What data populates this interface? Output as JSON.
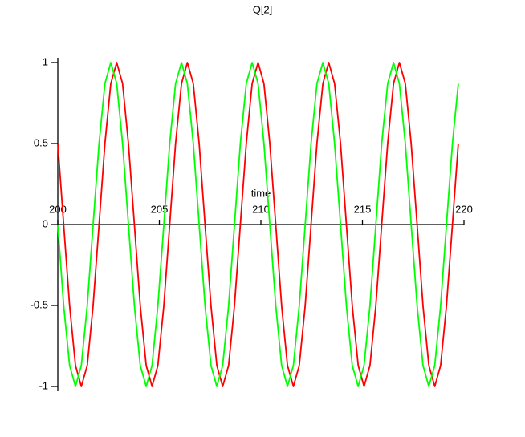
{
  "chart_data": {
    "type": "line",
    "title": "Q[2]",
    "x_label": "time",
    "x": [
      200,
      200.29,
      200.58,
      200.87,
      201.16,
      201.45,
      201.74,
      202.03,
      202.32,
      202.61,
      202.9,
      203.19,
      203.48,
      203.77,
      204.06,
      204.35,
      204.64,
      204.93,
      205.22,
      205.51,
      205.8,
      206.09,
      206.38,
      206.67,
      206.96,
      207.25,
      207.54,
      207.83,
      208.12,
      208.41,
      208.7,
      208.99,
      209.28,
      209.57,
      209.86,
      210.15,
      210.44,
      210.73,
      211.02,
      211.31,
      211.6,
      211.89,
      212.18,
      212.47,
      212.76,
      213.05,
      213.34,
      213.63,
      213.92,
      214.21,
      214.5,
      214.79,
      215.08,
      215.37,
      215.66,
      215.95,
      216.24,
      216.53,
      216.82,
      217.11,
      217.4,
      217.69,
      217.98,
      218.27,
      218.56,
      218.85,
      219.14,
      219.43,
      219.72
    ],
    "series": [
      {
        "color": "#ff0000",
        "values": [
          0.5,
          0,
          -0.5,
          -0.87,
          -1,
          -0.87,
          -0.5,
          0,
          0.5,
          0.87,
          1,
          0.87,
          0.5,
          0,
          -0.5,
          -0.87,
          -1,
          -0.87,
          -0.5,
          0,
          0.5,
          0.87,
          1,
          0.87,
          0.5,
          0,
          -0.5,
          -0.87,
          -1,
          -0.87,
          -0.5,
          0,
          0.5,
          0.87,
          1,
          0.87,
          0.5,
          0,
          -0.5,
          -0.87,
          -1,
          -0.87,
          -0.5,
          0,
          0.5,
          0.87,
          1,
          0.87,
          0.5,
          0,
          -0.5,
          -0.87,
          -1,
          -0.87,
          -0.5,
          0,
          0.5,
          0.87,
          1,
          0.87,
          0.5,
          0,
          -0.5,
          -0.87,
          -1,
          -0.87,
          -0.5,
          0,
          0.5
        ]
      },
      {
        "color": "#00ff00",
        "values": [
          0,
          -0.5,
          -0.87,
          -1,
          -0.87,
          -0.5,
          0,
          0.5,
          0.87,
          1,
          0.87,
          0.5,
          0,
          -0.5,
          -0.87,
          -1,
          -0.87,
          -0.5,
          0,
          0.5,
          0.87,
          1,
          0.87,
          0.5,
          0,
          -0.5,
          -0.87,
          -1,
          -0.87,
          -0.5,
          0,
          0.5,
          0.87,
          1,
          0.87,
          0.5,
          0,
          -0.5,
          -0.87,
          -1,
          -0.87,
          -0.5,
          0,
          0.5,
          0.87,
          1,
          0.87,
          0.5,
          0,
          -0.5,
          -0.87,
          -1,
          -0.87,
          -0.5,
          0,
          0.5,
          0.87,
          1,
          0.87,
          0.5,
          0,
          -0.5,
          -0.87,
          -1,
          -0.87,
          -0.5,
          0,
          0.5,
          0.87
        ]
      }
    ],
    "xlim": [
      200,
      220
    ],
    "ylim": [
      -1,
      1
    ],
    "xticks": [
      200,
      205,
      210,
      215,
      220
    ],
    "yticks": [
      -1,
      -0.5,
      0,
      0.5,
      1
    ]
  }
}
